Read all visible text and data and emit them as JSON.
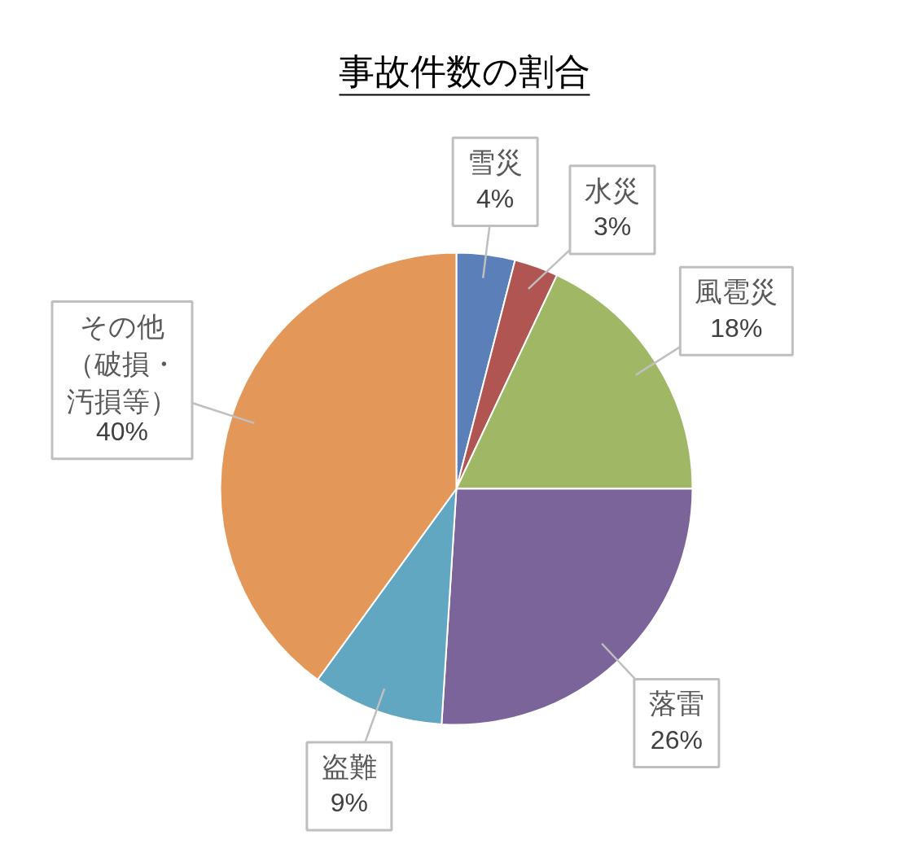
{
  "chart_data": {
    "type": "pie",
    "title": "事故件数の割合",
    "categories": [
      "雪災",
      "水災",
      "風雹災",
      "落雷",
      "盗難",
      "その他（破損・汚損等）"
    ],
    "values": [
      4,
      3,
      18,
      26,
      9,
      40
    ],
    "value_labels": [
      "4%",
      "3%",
      "18%",
      "26%",
      "9%",
      "40%"
    ],
    "colors": [
      "#5b7fb8",
      "#b05551",
      "#a0b865",
      "#7b6499",
      "#62a7c1",
      "#e3985a"
    ]
  }
}
